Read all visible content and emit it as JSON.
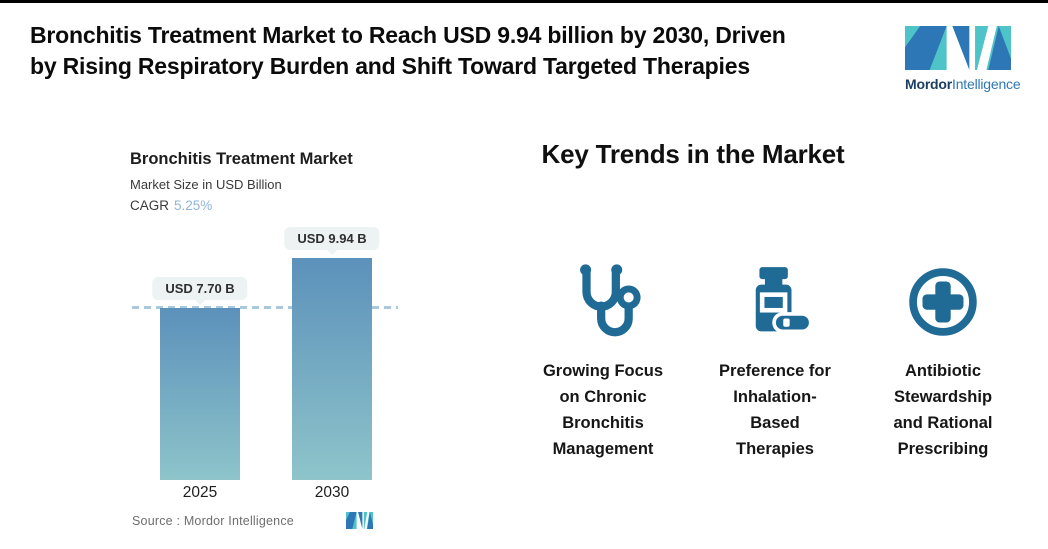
{
  "colors": {
    "accent_teal": "#4fc4c8",
    "accent_blue": "#2d77b6",
    "brand_navy": "#1c3e63",
    "icon_color": "#1f6b96",
    "cagr_value_color": "#8fb6d8",
    "bar_gradient_top": "#5c91bb",
    "bar_gradient_bottom": "#8ec4ca",
    "dashed_line_color": "#a9c7dd",
    "pill_bg": "#edf2f3"
  },
  "header": {
    "title": "Bronchitis Treatment Market to Reach USD 9.94 billion by 2030, Driven\nby Rising Respiratory Burden and Shift Toward Targeted Therapies",
    "logo": {
      "brand_bold": "Mordor",
      "brand_light": "Intelligence"
    }
  },
  "chart_data": {
    "type": "bar",
    "title": "Bronchitis Treatment Market",
    "subtitle": "Market Size in USD Billion",
    "cagr_label": "CAGR",
    "cagr_value": "5.25%",
    "categories": [
      "2025",
      "2030"
    ],
    "values": [
      7.7,
      9.94
    ],
    "value_labels": [
      "USD 7.70 B",
      "USD 9.94 B"
    ],
    "unit": "USD Billion",
    "reference_line_at": 7.7,
    "ylim": [
      0,
      11.2
    ],
    "grid": false,
    "legend": false,
    "source_label": "Source :  Mordor Intelligence"
  },
  "key_trends": {
    "heading": "Key Trends in the Market",
    "items": [
      {
        "icon": "stethoscope-icon",
        "label": "Growing Focus\non Chronic\nBronchitis\nManagement"
      },
      {
        "icon": "pill-bottle-icon",
        "label": "Preference for\nInhalation-\nBased\nTherapies"
      },
      {
        "icon": "medical-cross-circle-icon",
        "label": "Antibiotic\nStewardship\nand Rational\nPrescribing"
      }
    ]
  }
}
